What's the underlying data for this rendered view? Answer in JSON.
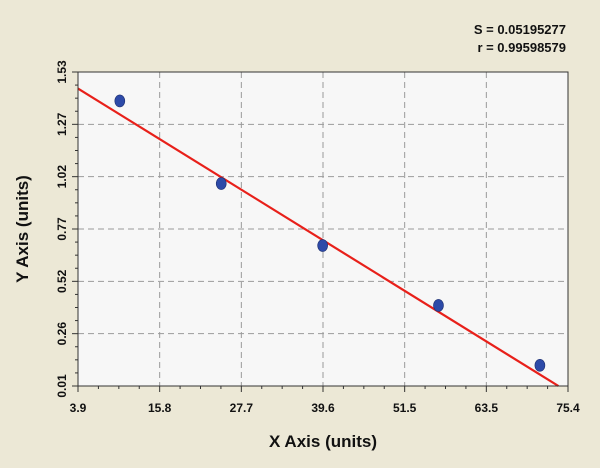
{
  "chart_data": {
    "type": "scatter",
    "title": "",
    "xlabel": "X Axis (units)",
    "ylabel": "Y Axis (units)",
    "xlim": [
      3.9,
      75.4
    ],
    "ylim": [
      0.01,
      1.53
    ],
    "x_ticks": [
      "3.9",
      "15.8",
      "27.7",
      "39.6",
      "51.5",
      "63.5",
      "75.4"
    ],
    "y_ticks": [
      "0.01",
      "0.26",
      "0.52",
      "0.77",
      "1.02",
      "1.27",
      "1.53"
    ],
    "stats": {
      "s_label": "S = 0.05195277",
      "r_label": "r = 0.99598579"
    },
    "grid": true,
    "series": [
      {
        "points": [
          {
            "x": 10.0,
            "y": 1.39
          },
          {
            "x": 24.8,
            "y": 0.99
          },
          {
            "x": 39.6,
            "y": 0.69
          },
          {
            "x": 56.5,
            "y": 0.4
          },
          {
            "x": 71.3,
            "y": 0.11
          }
        ],
        "color": "#2d4aa8"
      }
    ],
    "fit_line": {
      "points": [
        {
          "x": 3.9,
          "y": 1.45
        },
        {
          "x": 74.0,
          "y": 0.01
        }
      ],
      "color": "#e8201a"
    }
  }
}
